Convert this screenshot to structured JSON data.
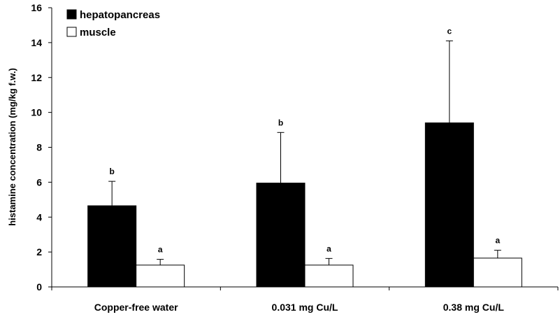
{
  "chart_data": {
    "type": "bar",
    "title": "",
    "xlabel": "",
    "ylabel": "histamine concentration (mg/kg f.w.)",
    "ylim": [
      0,
      16
    ],
    "yticks": [
      0,
      2,
      4,
      6,
      8,
      10,
      12,
      14,
      16
    ],
    "grid": false,
    "legend_position": "top-left",
    "categories": [
      "Copper-free water",
      "0.031 mg Cu/L",
      "0.38 mg Cu/L"
    ],
    "series": [
      {
        "name": "hepatopancreas",
        "color": "#000000",
        "values": [
          4.65,
          5.95,
          9.4
        ],
        "errors": [
          1.4,
          2.9,
          4.7
        ],
        "labels": [
          "b",
          "b",
          "c"
        ]
      },
      {
        "name": "muscle",
        "color": "#ffffff",
        "values": [
          1.25,
          1.25,
          1.65
        ],
        "errors": [
          0.33,
          0.38,
          0.45
        ],
        "labels": [
          "a",
          "a",
          "a"
        ]
      }
    ]
  }
}
